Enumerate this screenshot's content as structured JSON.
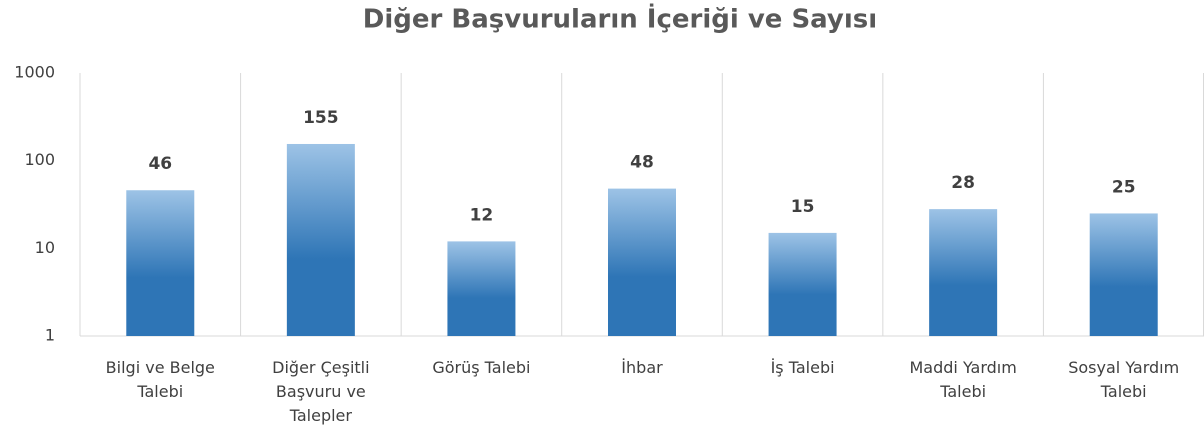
{
  "chart_data": {
    "type": "bar",
    "title": "Diğer Başvuruların İçeriği ve Sayısı",
    "categories": [
      "Bilgi ve Belge Talebi",
      "Diğer Çeşitli Başvuru ve Talepler",
      "Görüş Talebi",
      "İhbar",
      "İş Talebi",
      "Maddi Yardım Talebi",
      "Sosyal Yardım Talebi"
    ],
    "values": [
      46,
      155,
      12,
      48,
      15,
      28,
      25
    ],
    "color": "#2e75b6",
    "color_top": "#9dc3e6",
    "log_scale": true,
    "ylim": [
      1,
      1000
    ],
    "yticks": [
      1,
      10,
      100,
      1000
    ],
    "grid": false
  }
}
